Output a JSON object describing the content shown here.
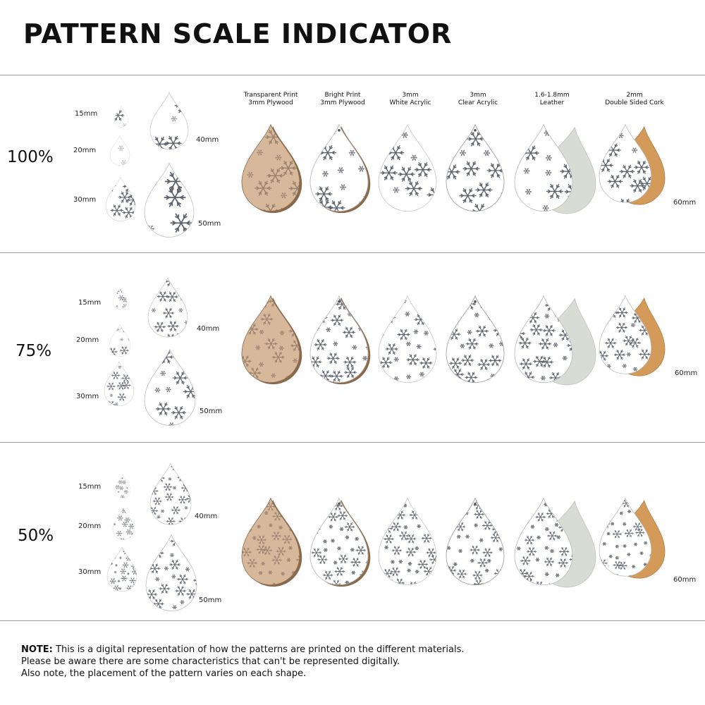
{
  "title": "PATTERN SCALE INDICATOR",
  "materials": [
    {
      "line1": "Transparent Print",
      "line2": "3mm Plywood"
    },
    {
      "line1": "Bright Print",
      "line2": "3mm Plywood"
    },
    {
      "line1": "3mm",
      "line2": "White Acrylic"
    },
    {
      "line1": "3mm",
      "line2": "Clear Acrylic"
    },
    {
      "line1": "1.6-1.8mm",
      "line2": "Leather"
    },
    {
      "line1": "2mm",
      "line2": "Double Sided Cork"
    }
  ],
  "rows": [
    {
      "scale": "100%"
    },
    {
      "scale": "75%"
    },
    {
      "scale": "50%"
    }
  ],
  "sizes": {
    "s15": "15mm",
    "s20": "20mm",
    "s30": "30mm",
    "s40": "40mm",
    "s50": "50mm",
    "s60": "60mm"
  },
  "note": {
    "label": "NOTE:",
    "line1": "This is a digital representation of how the patterns are printed on the different materials.",
    "line2": "Please be aware there are some characteristics that can't be represented digitally.",
    "line3": "Also note, the placement of the pattern varies on each shape."
  },
  "colors": {
    "plywood": "#d7b89b",
    "plywood_edge": "#8a6a4c",
    "snow": "#5c626c",
    "snow_light": "#9a8270",
    "white": "#ffffff",
    "cork": "#d39a5a",
    "suede": "#d9dcd5",
    "outline": "#b8b8b8"
  }
}
